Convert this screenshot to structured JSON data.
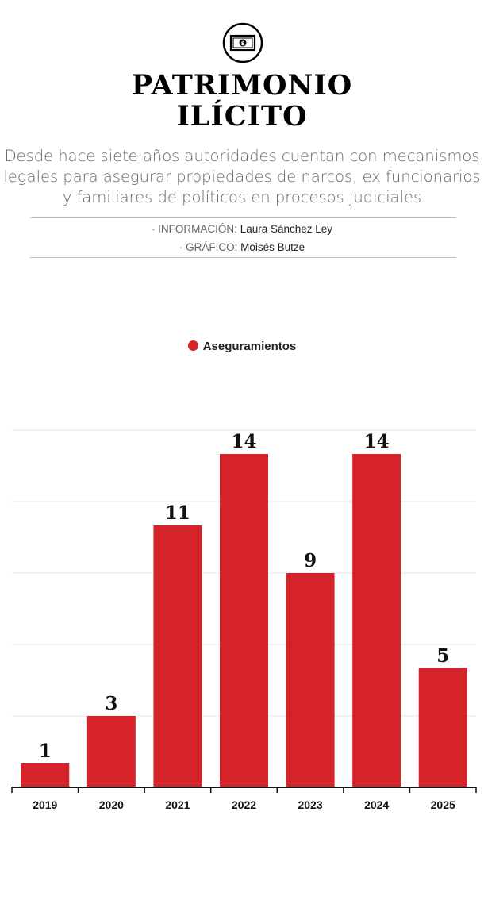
{
  "header": {
    "icon": "banknote-icon",
    "title_line1": "PATRIMONIO",
    "title_line2": "ILÍCITO",
    "subtitle_lines": [
      "Desde hace siete años autoridades cuentan con mecanismos",
      "legales para asegurar propiedades de narcos, ex funcionarios",
      "y familiares de políticos en procesos judiciales"
    ],
    "credits": {
      "info_label": "· INFORMACIÓN:",
      "info_name": "Laura Sánchez Ley",
      "graphic_label": "· GRÁFICO:",
      "graphic_name": "Moisés Butze"
    }
  },
  "colors": {
    "accent": "#d6232a",
    "grid": "#e6e6e6",
    "text": "#111111",
    "subtitle": "#666666"
  },
  "chart_data": {
    "type": "bar",
    "categories": [
      "2019",
      "2020",
      "2021",
      "2022",
      "2023",
      "2024",
      "2025"
    ],
    "series": [
      {
        "name": "Aseguramientos",
        "values": [
          1,
          3,
          11,
          14,
          9,
          14,
          5
        ]
      }
    ],
    "ylim": [
      0,
      15
    ],
    "grid": true,
    "data_labels": true,
    "legend_position": "top-center",
    "title": "",
    "xlabel": "",
    "ylabel": ""
  }
}
